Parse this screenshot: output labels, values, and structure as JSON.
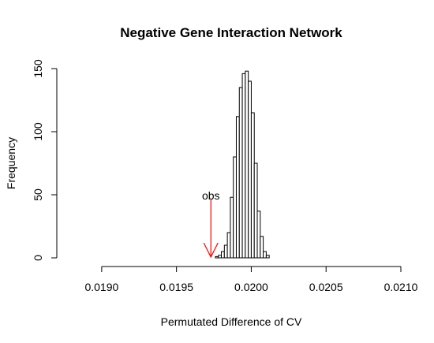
{
  "chart_data": {
    "type": "bar",
    "title": "Negative Gene Interaction Network",
    "xlabel": "Permutated Difference of CV",
    "ylabel": "Frequency",
    "xlim": [
      0.0187,
      0.021
    ],
    "ylim": [
      0,
      150
    ],
    "x_ticks": [
      0.019,
      0.0195,
      0.02,
      0.0205,
      0.021
    ],
    "x_tick_labels": [
      "0.0190",
      "0.0195",
      "0.0200",
      "0.0205",
      "0.0210"
    ],
    "y_ticks": [
      0,
      50,
      100,
      150
    ],
    "y_tick_labels": [
      "0",
      "50",
      "100",
      "150"
    ],
    "grid": false,
    "bin_width": 2e-05,
    "bins_start": [
      0.01976,
      0.01978,
      0.0198,
      0.01982,
      0.01984,
      0.01986,
      0.01988,
      0.0199,
      0.01992,
      0.01994,
      0.01996,
      0.01998,
      0.02,
      0.02002,
      0.02004,
      0.02006,
      0.02008,
      0.0201
    ],
    "counts": [
      1,
      2,
      5,
      10,
      20,
      48,
      80,
      112,
      135,
      146,
      148,
      140,
      115,
      75,
      37,
      17,
      5,
      2
    ],
    "annotation": {
      "label": "obs",
      "x": 0.01973,
      "arrow_color": "#ff0000"
    }
  }
}
